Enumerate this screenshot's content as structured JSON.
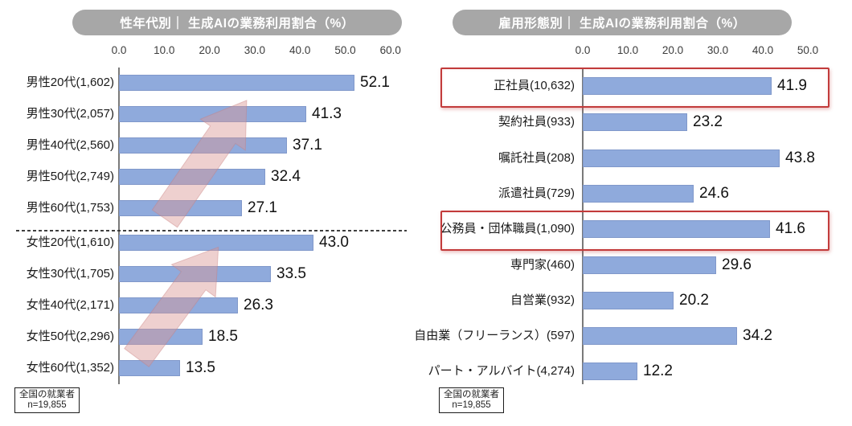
{
  "note": {
    "line1": "全国の就業者",
    "line2": "n=19,855"
  },
  "colors": {
    "bar": "#8faadc",
    "title_pill_bg": "#a7a7a7",
    "title_pill_text": "#ffffff",
    "highlight_border": "#c23b3b",
    "trend_arrow": "#d99694",
    "axis_line": "#7a7a7a"
  },
  "chart_data": [
    {
      "type": "bar",
      "orientation": "horizontal",
      "title": "性年代別｜ 生成AIの業務利用割合（%）",
      "categories": [
        "男性20代(1,602)",
        "男性30代(2,057)",
        "男性40代(2,560)",
        "男性50代(2,749)",
        "男性60代(1,753)",
        "女性20代(1,610)",
        "女性30代(1,705)",
        "女性40代(2,171)",
        "女性50代(2,296)",
        "女性60代(1,352)"
      ],
      "values": [
        52.1,
        41.3,
        37.1,
        32.4,
        27.1,
        43.0,
        33.5,
        26.3,
        18.5,
        13.5
      ],
      "xlim": [
        0,
        60
      ],
      "tick_labels": [
        "0.0",
        "10.0",
        "20.0",
        "30.0",
        "40.0",
        "50.0",
        "60.0"
      ],
      "grid": false,
      "legend": false,
      "group_separator_after": "男性60代(1,753)",
      "annotations": [
        "上昇トレンド矢印（男性グループ）",
        "上昇トレンド矢印（女性グループ）"
      ],
      "note": "全国の就業者 n=19,855"
    },
    {
      "type": "bar",
      "orientation": "horizontal",
      "title": "雇用形態別｜ 生成AIの業務利用割合（%）",
      "categories": [
        "正社員(10,632)",
        "契約社員(933)",
        "嘱託社員(208)",
        "派遣社員(729)",
        "公務員・団体職員(1,090)",
        "専門家(460)",
        "自営業(932)",
        "自由業（フリーランス）(597)",
        "パート・アルバイト(4,274)"
      ],
      "values": [
        41.9,
        23.2,
        43.8,
        24.6,
        41.6,
        29.6,
        20.2,
        34.2,
        12.2
      ],
      "xlim": [
        0,
        50
      ],
      "tick_labels": [
        "0.0",
        "10.0",
        "20.0",
        "30.0",
        "40.0",
        "50.0"
      ],
      "grid": false,
      "legend": false,
      "highlighted": [
        "正社員(10,632)",
        "公務員・団体職員(1,090)"
      ],
      "note": "全国の就業者 n=19,855"
    }
  ]
}
